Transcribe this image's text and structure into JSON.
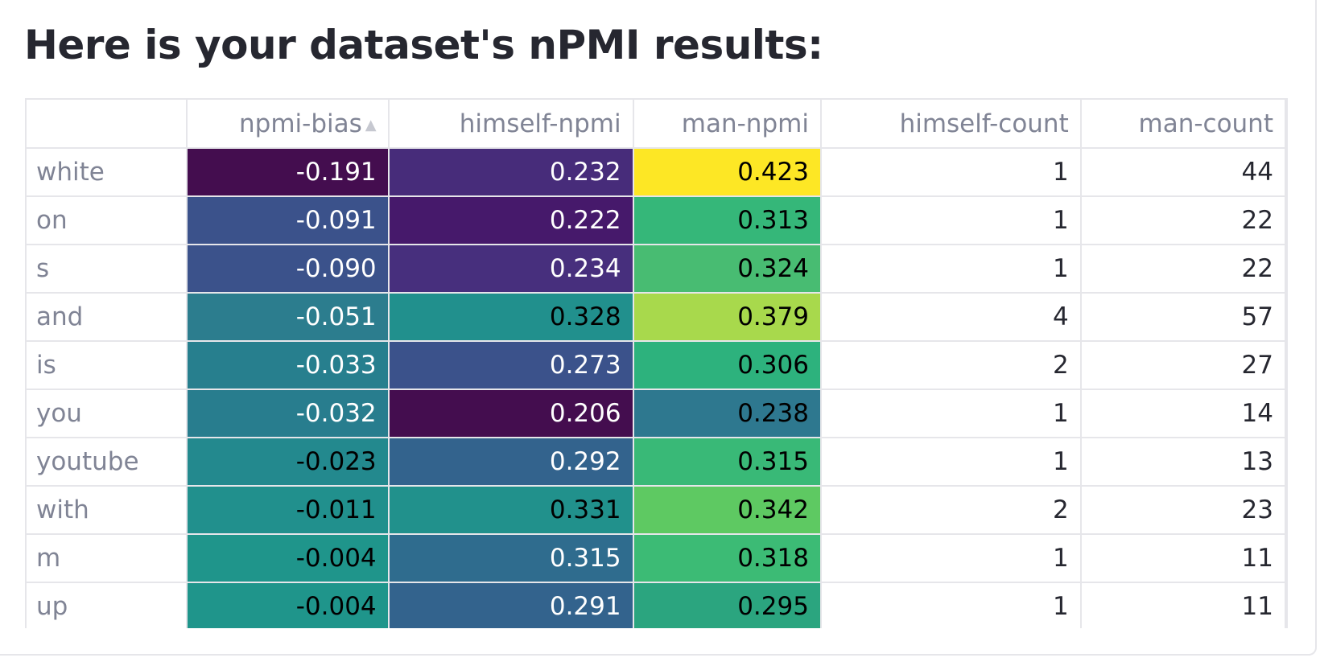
{
  "page": {
    "title": "Here is your dataset's nPMI results:"
  },
  "table": {
    "columns": [
      "npmi-bias",
      "himself-npmi",
      "man-npmi",
      "himself-count",
      "man-count"
    ],
    "sorted_column": "npmi-bias",
    "sort_direction": "ascending",
    "rows": [
      {
        "term": "white",
        "npmi_bias": "-0.191",
        "himself_npmi": "0.232",
        "man_npmi": "0.423",
        "himself_count": "1",
        "man_count": "44"
      },
      {
        "term": "on",
        "npmi_bias": "-0.091",
        "himself_npmi": "0.222",
        "man_npmi": "0.313",
        "himself_count": "1",
        "man_count": "22"
      },
      {
        "term": "s",
        "npmi_bias": "-0.090",
        "himself_npmi": "0.234",
        "man_npmi": "0.324",
        "himself_count": "1",
        "man_count": "22"
      },
      {
        "term": "and",
        "npmi_bias": "-0.051",
        "himself_npmi": "0.328",
        "man_npmi": "0.379",
        "himself_count": "4",
        "man_count": "57"
      },
      {
        "term": "is",
        "npmi_bias": "-0.033",
        "himself_npmi": "0.273",
        "man_npmi": "0.306",
        "himself_count": "2",
        "man_count": "27"
      },
      {
        "term": "you",
        "npmi_bias": "-0.032",
        "himself_npmi": "0.206",
        "man_npmi": "0.238",
        "himself_count": "1",
        "man_count": "14"
      },
      {
        "term": "youtube",
        "npmi_bias": "-0.023",
        "himself_npmi": "0.292",
        "man_npmi": "0.315",
        "himself_count": "1",
        "man_count": "13"
      },
      {
        "term": "with",
        "npmi_bias": "-0.011",
        "himself_npmi": "0.331",
        "man_npmi": "0.342",
        "himself_count": "2",
        "man_count": "23"
      },
      {
        "term": "m",
        "npmi_bias": "-0.004",
        "himself_npmi": "0.315",
        "man_npmi": "0.318",
        "himself_count": "1",
        "man_count": "11"
      },
      {
        "term": "up",
        "npmi_bias": "-0.004",
        "himself_npmi": "0.291",
        "man_npmi": "0.295",
        "himself_count": "1",
        "man_count": "11"
      }
    ],
    "cell_colors": {
      "npmi_bias": [
        "#440d4f",
        "#3b528b",
        "#3b528b",
        "#2c7d8e",
        "#277f8e",
        "#287d8e",
        "#23898e",
        "#21908d",
        "#1f958b",
        "#1f958b"
      ],
      "himself_npmi": [
        "#472c7a",
        "#46196b",
        "#472f7d",
        "#21908d",
        "#3b528b",
        "#440d4f",
        "#33638d",
        "#21918c",
        "#2f6c8e",
        "#33638d"
      ],
      "man_npmi": [
        "#fde725",
        "#35b779",
        "#48bc72",
        "#a8d94c",
        "#2db27d",
        "#2e788f",
        "#39b977",
        "#5ec962",
        "#3cbb75",
        "#2ba57f"
      ]
    },
    "text_colors": {
      "npmi_bias": [
        "#ffffff",
        "#ffffff",
        "#ffffff",
        "#ffffff",
        "#ffffff",
        "#ffffff",
        "#000000",
        "#000000",
        "#000000",
        "#000000"
      ],
      "himself_npmi": [
        "#ffffff",
        "#ffffff",
        "#ffffff",
        "#000000",
        "#ffffff",
        "#ffffff",
        "#ffffff",
        "#000000",
        "#ffffff",
        "#ffffff"
      ],
      "man_npmi": [
        "#000000",
        "#000000",
        "#000000",
        "#000000",
        "#000000",
        "#000000",
        "#000000",
        "#000000",
        "#000000",
        "#000000"
      ]
    }
  },
  "colors": {
    "title": "#262730",
    "header_text": "#808495",
    "grid": "#e6e6ea"
  }
}
